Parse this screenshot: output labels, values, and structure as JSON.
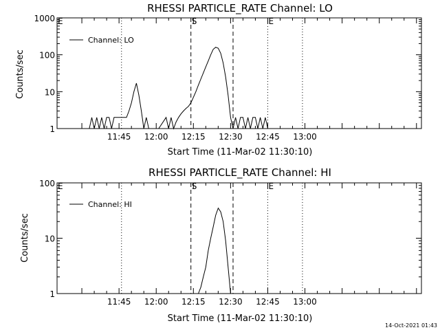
{
  "chart_data": [
    {
      "type": "line",
      "title": "RHESSI PARTICLE_RATE Channel: LO",
      "xlabel": "Start Time (11-Mar-02 11:30:10)",
      "ylabel": "Counts/sec",
      "yscale": "log",
      "ylim": [
        1,
        1000
      ],
      "yticks": [
        1,
        10,
        100,
        1000
      ],
      "yticklabels": [
        "1",
        "10",
        "100",
        "1000"
      ],
      "xlim_minutes": [
        -10,
        137
      ],
      "xticks_minutes": [
        15,
        30,
        45,
        60,
        75,
        90
      ],
      "xticklabels": [
        "11:45",
        "12:00",
        "12:15",
        "12:30",
        "12:45",
        "13:00"
      ],
      "legend": "Channel: LO",
      "markers": [
        {
          "label": "E",
          "t": -10,
          "style": "none"
        },
        {
          "label": "",
          "t": 16,
          "style": "dotted"
        },
        {
          "label": "S",
          "t": 44,
          "style": "dashed"
        },
        {
          "label": "",
          "t": 61,
          "style": "dashed"
        },
        {
          "label": "E",
          "t": 75,
          "style": "dotted"
        },
        {
          "label": "",
          "t": 89,
          "style": "dotted"
        }
      ],
      "series": [
        {
          "name": "Channel: LO",
          "t_minutes": [
            3.0,
            4.0,
            5.0,
            6.0,
            7.0,
            8.0,
            9.0,
            10.0,
            11.0,
            12.0,
            13.0,
            14.0,
            15.0,
            16.0,
            17.0,
            18.0,
            19.0,
            20.0,
            21.0,
            22.0,
            23.0,
            24.0,
            25.0,
            26.0,
            27.0,
            31.0,
            34.0,
            35.0,
            36.0,
            37.0,
            38.0,
            39.0,
            40.0,
            41.0,
            42.0,
            43.0,
            44.0,
            45.0,
            46.0,
            47.0,
            48.0,
            49.0,
            50.0,
            51.0,
            52.0,
            53.0,
            54.0,
            55.0,
            56.0,
            57.0,
            58.0,
            59.0,
            60.0,
            61.0,
            62.0,
            63.0,
            64.0,
            65.0,
            66.0,
            67.0,
            68.0,
            69.0,
            70.0,
            71.0,
            72.0,
            73.0,
            74.0,
            75.0,
            76.0
          ],
          "values": [
            1,
            2,
            1,
            2,
            1,
            2,
            1,
            2,
            2,
            1,
            2,
            2,
            2,
            2,
            2,
            2,
            3,
            5,
            10,
            17,
            8,
            3,
            1,
            2,
            1,
            1,
            2,
            1,
            2,
            1,
            1.5,
            2,
            2.5,
            3,
            3.5,
            4,
            5,
            7,
            10,
            15,
            22,
            32,
            47,
            68,
            100,
            140,
            160,
            150,
            110,
            60,
            25,
            8,
            2,
            1,
            2,
            1,
            2,
            2,
            1,
            2,
            1,
            2,
            2,
            1,
            2,
            1,
            2,
            1,
            1
          ]
        }
      ]
    },
    {
      "type": "line",
      "title": "RHESSI PARTICLE_RATE Channel: HI",
      "xlabel": "Start Time (11-Mar-02 11:30:10)",
      "ylabel": "Counts/sec",
      "yscale": "log",
      "ylim": [
        1,
        100
      ],
      "yticks": [
        1,
        10,
        100
      ],
      "yticklabels": [
        "1",
        "10",
        "100"
      ],
      "xlim_minutes": [
        -10,
        137
      ],
      "xticks_minutes": [
        15,
        30,
        45,
        60,
        75,
        90
      ],
      "xticklabels": [
        "11:45",
        "12:00",
        "12:15",
        "12:30",
        "12:45",
        "13:00"
      ],
      "legend": "Channel: HI",
      "markers": [
        {
          "label": "E",
          "t": -10,
          "style": "none"
        },
        {
          "label": "",
          "t": 16,
          "style": "dotted"
        },
        {
          "label": "S",
          "t": 44,
          "style": "dashed"
        },
        {
          "label": "",
          "t": 61,
          "style": "dashed"
        },
        {
          "label": "E",
          "t": 75,
          "style": "dotted"
        },
        {
          "label": "",
          "t": 89,
          "style": "dotted"
        }
      ],
      "series": [
        {
          "name": "Channel: HI",
          "t_minutes": [
            47.0,
            48.0,
            49.0,
            50.0,
            51.0,
            52.0,
            53.0,
            54.0,
            55.0,
            56.0,
            57.0,
            58.0,
            59.0,
            60.0
          ],
          "values": [
            1,
            1.3,
            2,
            3,
            6,
            10,
            16,
            26,
            35,
            30,
            20,
            9,
            3,
            1
          ]
        }
      ]
    }
  ],
  "timestamp": "14-Oct-2021 01:43"
}
